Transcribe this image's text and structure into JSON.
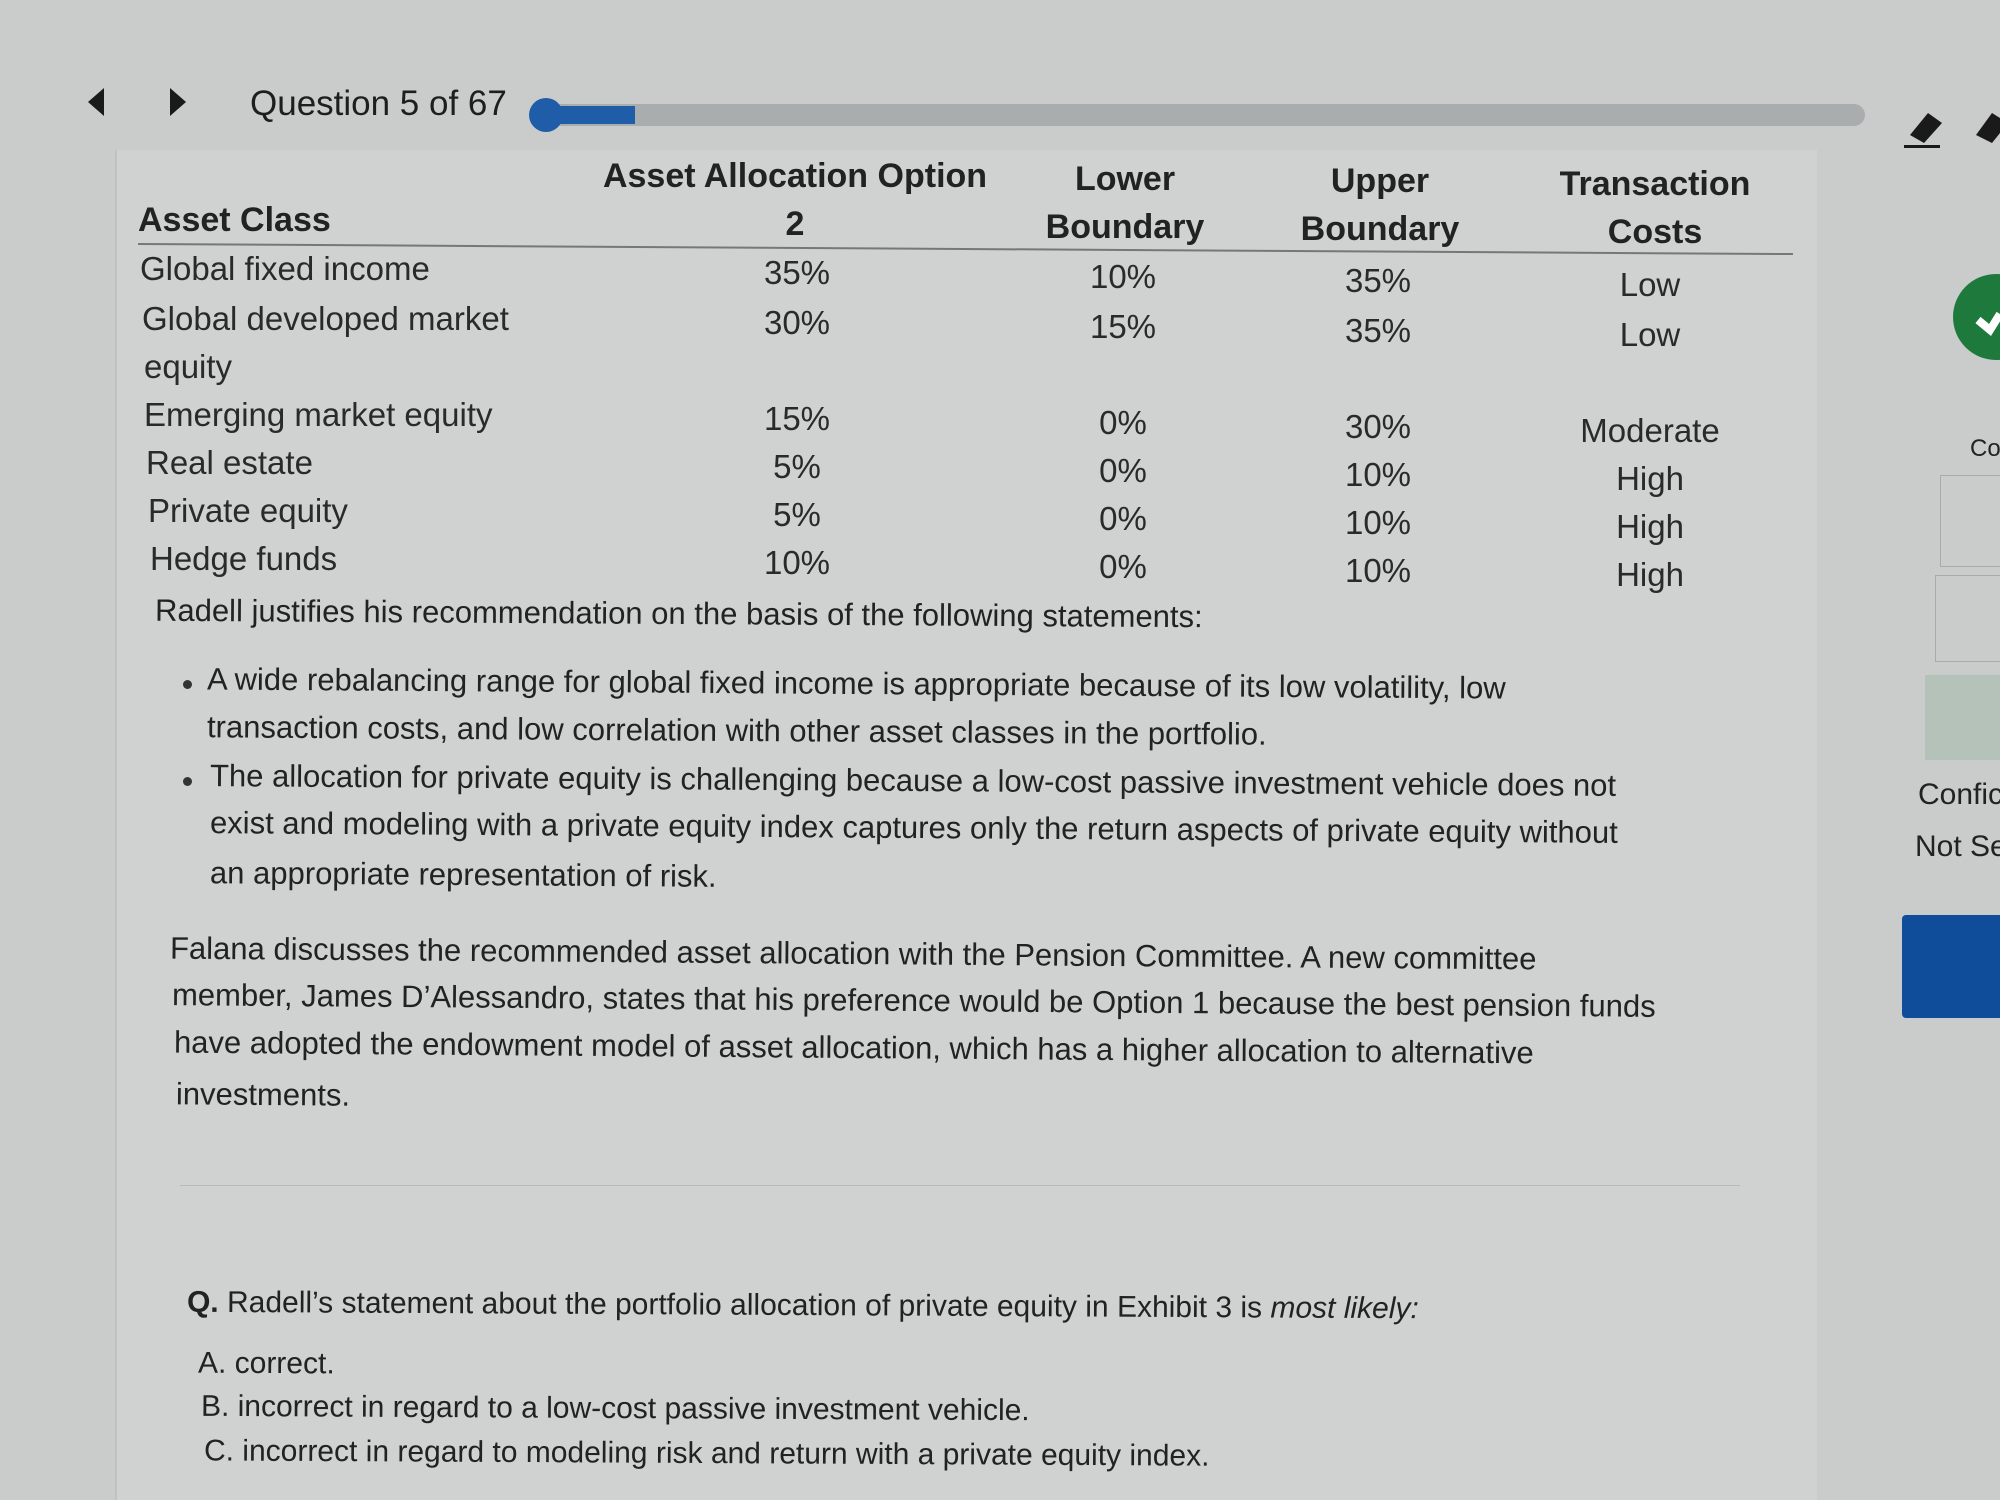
{
  "nav": {
    "question_label": "Question 5 of 67",
    "progress_fraction": 0.075
  },
  "toolbar": {
    "icons": [
      "highlighter-icon",
      "eraser-icon"
    ]
  },
  "table": {
    "headers": [
      "Asset Class",
      "Asset Allocation Option",
      "2",
      "Lower",
      "Boundary",
      "Upper",
      "Boundary",
      "Transaction",
      "Costs"
    ],
    "rows": [
      [
        "Global fixed income",
        "35%",
        "10%",
        "35%",
        "Low"
      ],
      [
        "Global developed market",
        "30%",
        "15%",
        "35%",
        "Low"
      ],
      [
        "Emerging market equity",
        "15%",
        "0%",
        "30%",
        "Moderate"
      ],
      [
        "Real estate",
        "5%",
        "0%",
        "10%",
        "High"
      ],
      [
        "Private equity",
        "5%",
        "0%",
        "10%",
        "High"
      ],
      [
        "Hedge funds",
        "10%",
        "0%",
        "10%",
        "High"
      ]
    ],
    "row2_continuation": "equity"
  },
  "intro": "Radell justifies his recommendation on the basis of the following statements:",
  "bullets": [
    [
      "A wide rebalancing range for global fixed income is appropriate because of its low volatility, low",
      "transaction costs, and low correlation with other asset classes in the portfolio."
    ],
    [
      "The allocation for private equity is challenging because a low-cost passive investment vehicle does not",
      "exist and modeling with a private equity index captures only the return aspects of private equity without",
      "an appropriate representation of risk."
    ]
  ],
  "paragraph": [
    "Falana discusses the recommended asset allocation with the Pension Committee. A new committee",
    "member, James D’Alessandro, states that his preference would be Option 1 because the best pension funds",
    "have adopted the endowment model of asset allocation, which has a higher allocation to alternative",
    "investments."
  ],
  "question": {
    "prefix": "Q.",
    "text": "Radell’s statement about the portfolio allocation of private equity in Exhibit 3 is ",
    "emphasis": "most likely:"
  },
  "options": [
    "A. correct.",
    "B. incorrect in regard to a low-cost passive investment vehicle.",
    "C. incorrect in regard to modeling risk and return with a private equity index."
  ],
  "right_panel": {
    "label_top": "Co",
    "confidence_1": "Confic",
    "confidence_2": "Not Se",
    "accent": "#1f5da8",
    "check_color": "#1e7a3c"
  }
}
